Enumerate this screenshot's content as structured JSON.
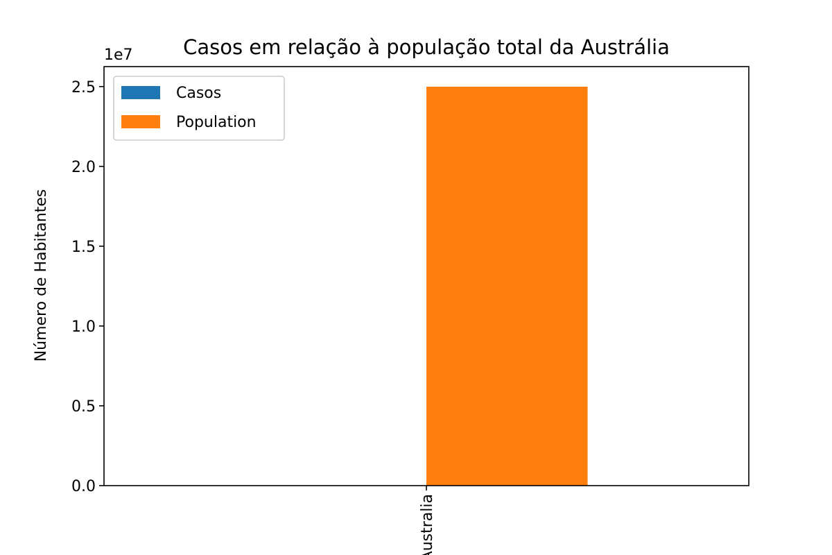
{
  "chart_data": {
    "type": "bar",
    "title": "Casos em relação à população total da Austrália",
    "xlabel": "",
    "ylabel": "Número de Habitantes",
    "offset_text": "1e7",
    "categories": [
      "Australia"
    ],
    "series": [
      {
        "name": "Casos",
        "values": [
          7000
        ],
        "color": "#1f77b4"
      },
      {
        "name": "Population",
        "values": [
          24990000
        ],
        "color": "#ff7f0e"
      }
    ],
    "ylim": [
      0,
      26250000
    ],
    "yticks": [
      0,
      5000000,
      10000000,
      15000000,
      20000000,
      25000000
    ],
    "ytick_labels": [
      "0.0",
      "0.5",
      "1.0",
      "1.5",
      "2.0",
      "2.5"
    ],
    "grid": false,
    "legend": "upper left"
  }
}
